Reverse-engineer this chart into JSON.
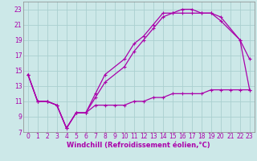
{
  "xlabel": "Windchill (Refroidissement éolien,°C)",
  "bg_color": "#cce8e8",
  "grid_color": "#aacfcf",
  "line_color": "#aa00aa",
  "spine_color": "#888888",
  "xlim": [
    -0.5,
    23.5
  ],
  "ylim": [
    7,
    24
  ],
  "xticks": [
    0,
    1,
    2,
    3,
    4,
    5,
    6,
    7,
    8,
    9,
    10,
    11,
    12,
    13,
    14,
    15,
    16,
    17,
    18,
    19,
    20,
    21,
    22,
    23
  ],
  "yticks": [
    7,
    9,
    11,
    13,
    15,
    17,
    19,
    21,
    23
  ],
  "line1_x": [
    0,
    1,
    2,
    3,
    4,
    5,
    6,
    7,
    8,
    9,
    10,
    11,
    12,
    13,
    14,
    15,
    16,
    17,
    18,
    19,
    20,
    21,
    22,
    23
  ],
  "line1_y": [
    14.5,
    11.0,
    11.0,
    10.5,
    7.5,
    9.5,
    9.5,
    10.5,
    10.5,
    10.5,
    10.5,
    11.0,
    11.0,
    11.5,
    11.5,
    12.0,
    12.0,
    12.0,
    12.0,
    12.5,
    12.5,
    12.5,
    12.5,
    12.5
  ],
  "line2_x": [
    0,
    1,
    2,
    3,
    4,
    5,
    6,
    7,
    8,
    10,
    11,
    12,
    13,
    14,
    15,
    16,
    17,
    18,
    19,
    20,
    22,
    23
  ],
  "line2_y": [
    14.5,
    11.0,
    11.0,
    10.5,
    7.5,
    9.5,
    9.5,
    12.0,
    14.5,
    16.5,
    18.5,
    19.5,
    21.0,
    22.5,
    22.5,
    23.0,
    23.0,
    22.5,
    22.5,
    21.5,
    19.0,
    16.5
  ],
  "line3_x": [
    0,
    1,
    2,
    3,
    4,
    5,
    6,
    7,
    8,
    10,
    11,
    12,
    13,
    14,
    15,
    16,
    17,
    18,
    19,
    20,
    22,
    23
  ],
  "line3_y": [
    14.5,
    11.0,
    11.0,
    10.5,
    7.5,
    9.5,
    9.5,
    11.5,
    13.5,
    15.5,
    17.5,
    19.0,
    20.5,
    22.0,
    22.5,
    22.5,
    22.5,
    22.5,
    22.5,
    22.0,
    19.0,
    12.5
  ],
  "xlabel_fontsize": 6.0,
  "tick_fontsize": 5.5,
  "lw": 0.9,
  "ms": 3.5
}
